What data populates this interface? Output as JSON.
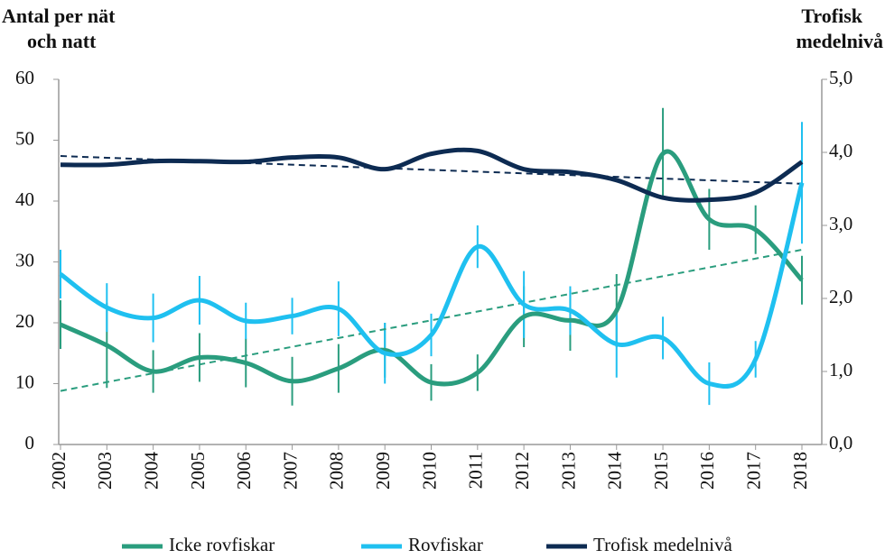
{
  "chart_data": {
    "type": "line",
    "y_label": [
      "Antal per nät",
      "och natt"
    ],
    "y2_label": [
      "Trofisk",
      "medelnivå"
    ],
    "categories": [
      "2002",
      "2003",
      "2004",
      "2005",
      "2006",
      "2007",
      "2008",
      "2009",
      "2010",
      "2011",
      "2012",
      "2013",
      "2014",
      "2015",
      "2016",
      "2017",
      "2018"
    ],
    "ylim": [
      0,
      60
    ],
    "yticks": [
      0,
      10,
      20,
      30,
      40,
      50,
      60
    ],
    "y2lim": [
      0,
      5
    ],
    "y2ticks": [
      {
        "value": 0,
        "label": "0,0"
      },
      {
        "value": 1,
        "label": "1,0"
      },
      {
        "value": 2,
        "label": "2,0"
      },
      {
        "value": 3,
        "label": "3,0"
      },
      {
        "value": 4,
        "label": "4,0"
      },
      {
        "value": 5,
        "label": "5,0"
      }
    ],
    "series": [
      {
        "name": "Icke rovfiskar",
        "color": "#2a9d7e",
        "values": [
          19.7,
          16.3,
          12,
          14.3,
          13.4,
          10.4,
          12.5,
          15.5,
          10.2,
          11.8,
          21,
          20.4,
          22,
          47.8,
          37,
          35.3,
          27
        ],
        "errors": [
          4,
          7,
          3.5,
          4,
          4,
          4,
          4,
          4.5,
          3,
          3,
          5,
          5,
          6,
          7.5,
          5,
          4,
          4
        ],
        "trend": [
          8.8,
          32
        ]
      },
      {
        "name": "Rovfiskar",
        "color": "#1fc0f0",
        "values": [
          28,
          22.5,
          20.8,
          23.7,
          20.3,
          21.1,
          22.3,
          15,
          18,
          32.5,
          23,
          22,
          16.5,
          17.5,
          10,
          14,
          43
        ],
        "errors": [
          4,
          4,
          4,
          4,
          3,
          3,
          4.5,
          5,
          3.5,
          3.5,
          5.5,
          4,
          5.5,
          3.5,
          3.5,
          3,
          10
        ],
        "trend": null
      },
      {
        "name": "Trofisk medelnivå",
        "color": "#0d2b52",
        "axis": "y2",
        "values": [
          3.83,
          3.83,
          3.88,
          3.88,
          3.87,
          3.93,
          3.93,
          3.77,
          3.98,
          4.02,
          3.77,
          3.73,
          3.62,
          3.38,
          3.35,
          3.45,
          3.87
        ],
        "errors": null,
        "trend": [
          3.95,
          3.57
        ]
      }
    ]
  }
}
